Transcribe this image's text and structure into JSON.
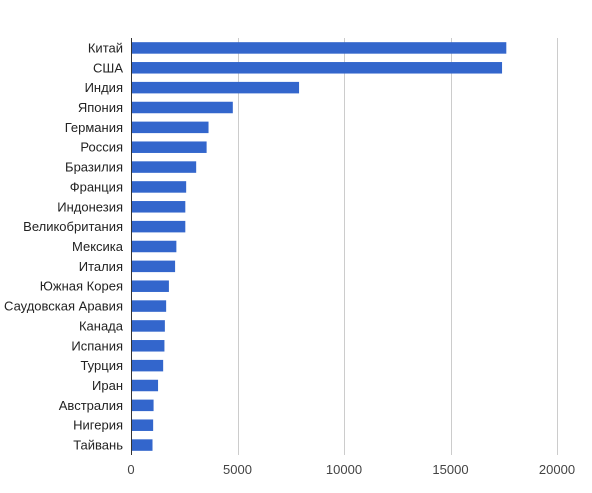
{
  "chart_data": {
    "type": "bar",
    "orientation": "horizontal",
    "title": "",
    "xlabel": "",
    "ylabel": "",
    "categories": [
      "Китай",
      "США",
      "Индия",
      "Япония",
      "Германия",
      "Россия",
      "Бразилия",
      "Франция",
      "Индонезия",
      "Великобритания",
      "Мексика",
      "Италия",
      "Южная Корея",
      "Саудовская Аравия",
      "Канада",
      "Испания",
      "Турция",
      "Иран",
      "Австралия",
      "Нигерия",
      "Тайвань"
    ],
    "values": [
      17620,
      17420,
      7890,
      4780,
      3640,
      3550,
      3060,
      2590,
      2550,
      2550,
      2130,
      2070,
      1780,
      1650,
      1590,
      1570,
      1510,
      1270,
      1060,
      1040,
      1010
    ],
    "xlim": [
      0,
      20000
    ],
    "xticks": [
      0,
      5000,
      10000,
      15000,
      20000
    ],
    "grid": true,
    "legend": "none",
    "bar_color": "#3366cc",
    "grid_color": "#cccccc",
    "axis_color": "#333333"
  }
}
